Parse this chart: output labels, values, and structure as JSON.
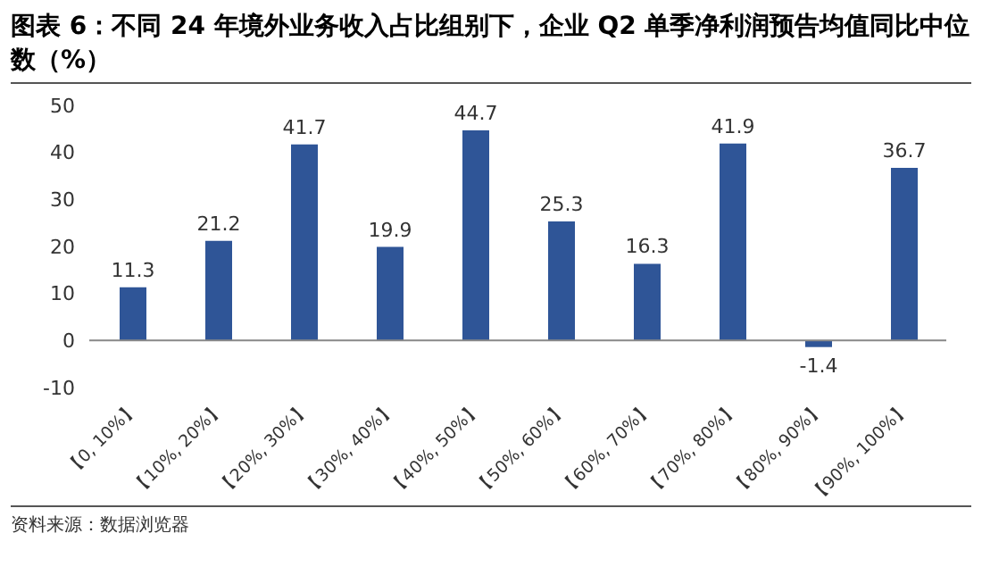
{
  "chart_data": {
    "type": "bar",
    "title": "图表 6：不同 24 年境外业务收入占比组别下，企业 Q2 单季净利润预告均值同比中位数（%）",
    "categories": [
      "【0, 10%】",
      "【10%, 20%】",
      "【20%, 30%】",
      "【30%, 40%】",
      "【40%, 50%】",
      "【50%, 60%】",
      "【60%, 70%】",
      "【70%, 80%】",
      "【80%, 90%】",
      "【90%, 100%】"
    ],
    "values": [
      11.3,
      21.2,
      41.7,
      19.9,
      44.7,
      25.3,
      16.3,
      41.9,
      -1.4,
      36.7
    ],
    "color": "#2f5597",
    "ylim": [
      -10,
      50
    ],
    "yticks": [
      -10,
      0,
      10,
      20,
      30,
      40,
      50
    ],
    "data_labels": true,
    "annotations": [
      "资料来源：数据浏览器"
    ]
  }
}
